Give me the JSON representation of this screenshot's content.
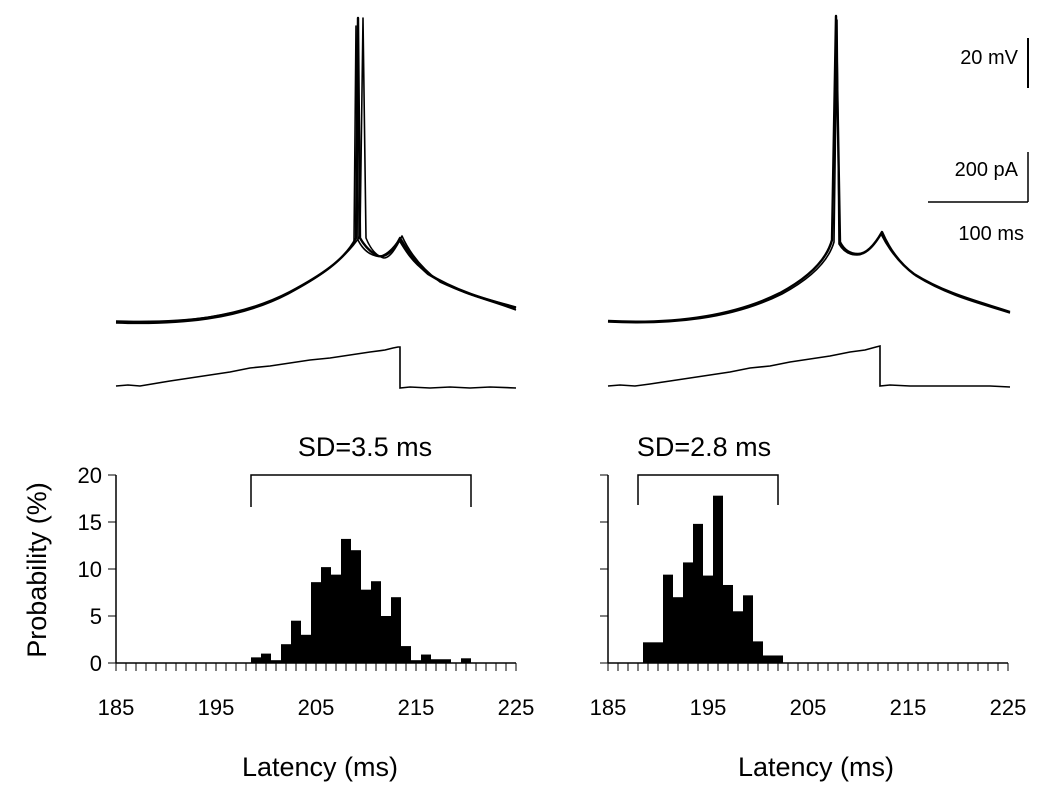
{
  "scale_bars": {
    "voltage": "20 mV",
    "current": "200 pA",
    "time": "100 ms"
  },
  "chart_data": [
    {
      "type": "bar",
      "title": "SD=3.5 ms",
      "xlabel": "Latency (ms)",
      "ylabel": "Probability (%)",
      "xlim": [
        185,
        225
      ],
      "ylim": [
        0,
        20
      ],
      "xticks": [
        185,
        195,
        205,
        215,
        225
      ],
      "yticks": [
        0,
        5,
        10,
        15,
        20
      ],
      "bin_width": 1,
      "bracket": [
        198.5,
        220.5
      ],
      "bins": [
        {
          "x": 199,
          "y": 0.6
        },
        {
          "x": 200,
          "y": 1.0
        },
        {
          "x": 201,
          "y": 0.3
        },
        {
          "x": 202,
          "y": 2.0
        },
        {
          "x": 203,
          "y": 4.5
        },
        {
          "x": 204,
          "y": 3.0
        },
        {
          "x": 205,
          "y": 8.6
        },
        {
          "x": 206,
          "y": 10.2
        },
        {
          "x": 207,
          "y": 9.4
        },
        {
          "x": 208,
          "y": 13.2
        },
        {
          "x": 209,
          "y": 12.0
        },
        {
          "x": 210,
          "y": 7.8
        },
        {
          "x": 211,
          "y": 8.7
        },
        {
          "x": 212,
          "y": 5.0
        },
        {
          "x": 213,
          "y": 7.0
        },
        {
          "x": 214,
          "y": 1.8
        },
        {
          "x": 215,
          "y": 0.3
        },
        {
          "x": 216,
          "y": 0.9
        },
        {
          "x": 217,
          "y": 0.4
        },
        {
          "x": 218,
          "y": 0.4
        },
        {
          "x": 220,
          "y": 0.5
        }
      ]
    },
    {
      "type": "bar",
      "title": "SD=2.8 ms",
      "xlabel": "Latency (ms)",
      "ylabel": "",
      "xlim": [
        185,
        225
      ],
      "ylim": [
        0,
        20
      ],
      "xticks": [
        185,
        195,
        205,
        215,
        225
      ],
      "yticks": [
        0,
        5,
        10,
        15,
        20
      ],
      "bin_width": 1,
      "bracket": [
        188,
        202
      ],
      "bins": [
        {
          "x": 189,
          "y": 2.2
        },
        {
          "x": 190,
          "y": 2.2
        },
        {
          "x": 191,
          "y": 9.4
        },
        {
          "x": 192,
          "y": 7.0
        },
        {
          "x": 193,
          "y": 10.7
        },
        {
          "x": 194,
          "y": 14.8
        },
        {
          "x": 195,
          "y": 9.3
        },
        {
          "x": 196,
          "y": 17.8
        },
        {
          "x": 197,
          "y": 8.3
        },
        {
          "x": 198,
          "y": 5.5
        },
        {
          "x": 199,
          "y": 7.2
        },
        {
          "x": 200,
          "y": 2.3
        },
        {
          "x": 201,
          "y": 0.8
        },
        {
          "x": 202,
          "y": 0.8
        }
      ]
    }
  ]
}
